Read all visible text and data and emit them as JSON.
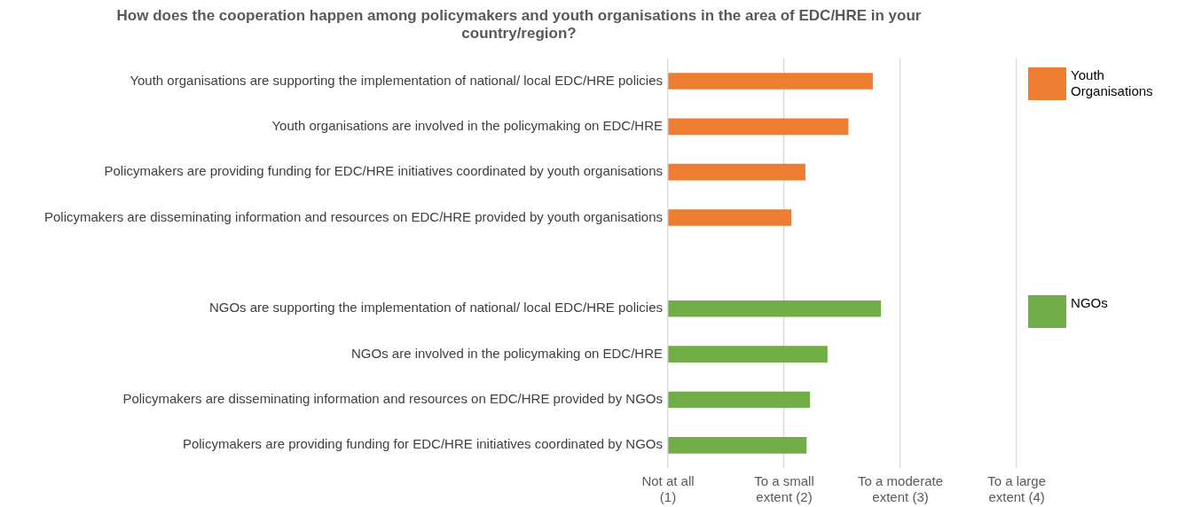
{
  "chart_data": {
    "type": "bar",
    "orientation": "horizontal",
    "title": "How does the cooperation happen among policymakers and youth organisations in the area of EDC/HRE in your country/region?",
    "categories": [
      "Youth organisations are supporting the implementation of national/ local EDC/HRE policies",
      "Youth organisations are involved in the policymaking on EDC/HRE",
      "Policymakers are providing funding for EDC/HRE initiatives coordinated by youth organisations",
      "Policymakers are disseminating information and resources on EDC/HRE provided by youth organisations",
      null,
      "NGOs are supporting the implementation of national/ local EDC/HRE policies",
      "NGOs are involved in the policymaking on EDC/HRE",
      "Policymakers are disseminating information and resources on EDC/HRE provided by NGOs",
      "Policymakers are providing funding for EDC/HRE initiatives coordinated by NGOs"
    ],
    "series": [
      {
        "name": "Youth Organisations",
        "color": "#ed7d31",
        "values": [
          2.76,
          2.55,
          2.18,
          2.06,
          null,
          null,
          null,
          null,
          null
        ]
      },
      {
        "name": "NGOs",
        "color": "#70ad47",
        "values": [
          null,
          null,
          null,
          null,
          null,
          2.83,
          2.37,
          2.22,
          2.19
        ]
      }
    ],
    "xlim": [
      1,
      4
    ],
    "xticks": [
      {
        "value": 1,
        "label": "Not at all\n(1)"
      },
      {
        "value": 2,
        "label": "To a small\nextent (2)"
      },
      {
        "value": 3,
        "label": "To a moderate\nextent (3)"
      },
      {
        "value": 4,
        "label": "To a large\nextent (4)"
      }
    ],
    "grid": "x",
    "legend": "right"
  }
}
